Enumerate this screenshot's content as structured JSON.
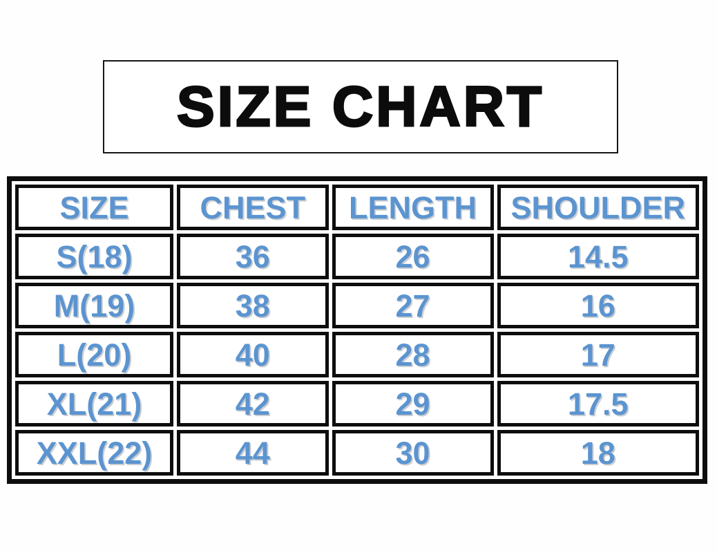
{
  "page": {
    "background_color": "#ffffff",
    "border_color": "#0d0d0d",
    "accent_text_color": "#5b94d0"
  },
  "title": {
    "text": "SIZE CHART"
  },
  "chart_data": {
    "type": "table",
    "title": "SIZE CHART",
    "columns": [
      "SIZE",
      "CHEST",
      "LENGTH",
      "SHOULDER"
    ],
    "rows": [
      [
        "S(18)",
        "36",
        "26",
        "14.5"
      ],
      [
        "M(19)",
        "38",
        "27",
        "16"
      ],
      [
        "L(20)",
        "40",
        "28",
        "17"
      ],
      [
        "XL(21)",
        "42",
        "29",
        "17.5"
      ],
      [
        "XXL(22)",
        "44",
        "30",
        "18"
      ]
    ]
  }
}
